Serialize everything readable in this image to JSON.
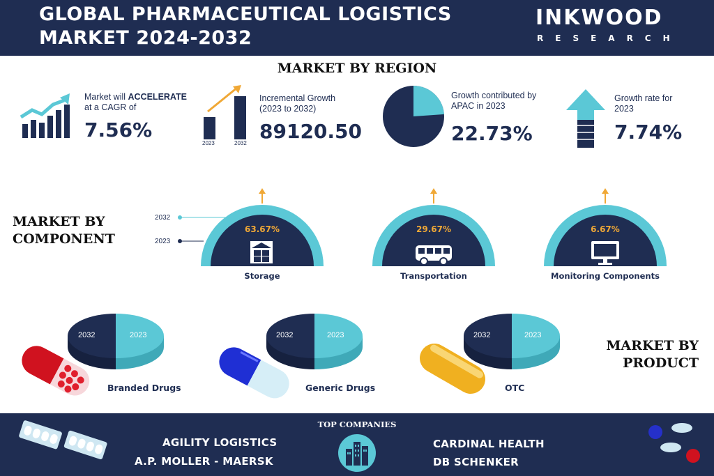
{
  "header": {
    "title_line1": "GLOBAL PHARMACEUTICAL LOGISTICS",
    "title_line2": "MARKET 2024-2032",
    "brand": "INKWOOD",
    "brand_sub": "RESEARCH"
  },
  "region": {
    "heading": "MARKET BY REGION",
    "stats": [
      {
        "text_pre": "Market will ",
        "text_bold": "ACCELERATE",
        "text_post": "at a CAGR of",
        "value": "7.56%",
        "icon": "growth-bars-icon"
      },
      {
        "text": "Incremental Growth",
        "text2": "(2023 to 2032)",
        "value": "89120.50",
        "icon": "bar-comparison-icon",
        "bar_label_left": "2023",
        "bar_label_right": "2032"
      },
      {
        "text": "Growth contributed by",
        "text2": "APAC in 2023",
        "value": "22.73%",
        "icon": "pie-icon"
      },
      {
        "text": "Growth rate for",
        "text2": "2023",
        "value": "7.74%",
        "icon": "up-arrow-icon"
      }
    ]
  },
  "component": {
    "heading_line1": "MARKET BY",
    "heading_line2": "COMPONENT",
    "legend": [
      "2032",
      "2023"
    ],
    "items": [
      {
        "pct": "63.67%",
        "label": "Storage",
        "icon": "warehouse-icon"
      },
      {
        "pct": "29.67%",
        "label": "Transportation",
        "icon": "bus-icon"
      },
      {
        "pct": "6.67%",
        "label": "Monitoring Components",
        "icon": "monitor-icon"
      }
    ]
  },
  "product": {
    "heading_line1": "MARKET BY",
    "heading_line2": "PRODUCT",
    "items": [
      {
        "label": "Branded Drugs",
        "y1": "2032",
        "y2": "2023",
        "icon": "red-capsule-icon"
      },
      {
        "label": "Generic Drugs",
        "y1": "2032",
        "y2": "2023",
        "icon": "blue-capsule-icon"
      },
      {
        "label": "OTC",
        "y1": "2032",
        "y2": "2023",
        "icon": "yellow-capsule-icon"
      }
    ]
  },
  "companies": {
    "heading": "TOP COMPANIES",
    "left": [
      "AGILITY LOGISTICS",
      "A.P. MOLLER - MAERSK"
    ],
    "right": [
      "CARDINAL HEALTH",
      "DB SCHENKER"
    ]
  },
  "colors": {
    "navy": "#1f2d52",
    "teal": "#5bc8d6",
    "orange": "#f0a836",
    "white": "#ffffff"
  }
}
